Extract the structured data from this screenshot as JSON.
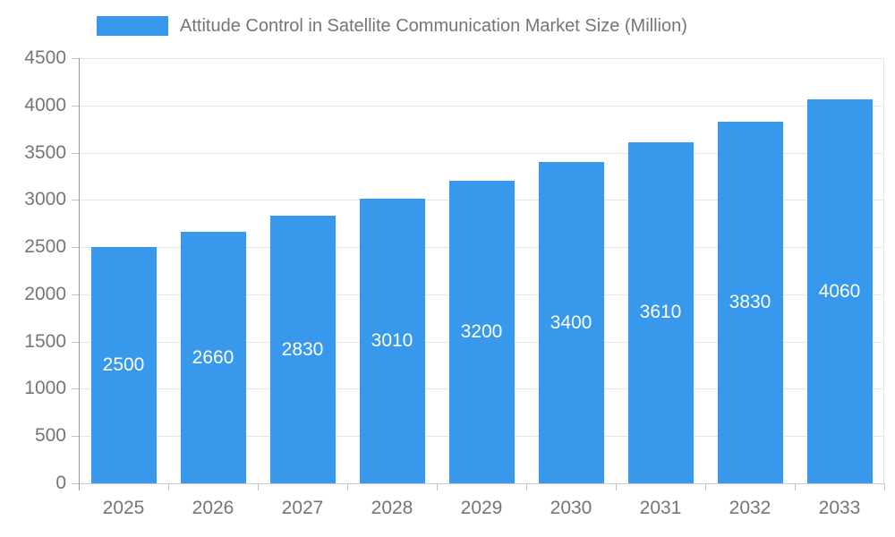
{
  "legend": {
    "label": "Attitude Control in Satellite Communication Market Size (Million)"
  },
  "chart_data": {
    "type": "bar",
    "title": "Attitude Control in Satellite Communication Market Size (Million)",
    "series_name": "Attitude Control in Satellite Communication Market Size (Million)",
    "categories": [
      "2025",
      "2026",
      "2027",
      "2028",
      "2029",
      "2030",
      "2031",
      "2032",
      "2033"
    ],
    "values": [
      2500,
      2660,
      2830,
      3010,
      3200,
      3400,
      3610,
      3830,
      4060
    ],
    "xlabel": "",
    "ylabel": "",
    "ylim": [
      0,
      4500
    ],
    "y_ticks": [
      0,
      500,
      1000,
      1500,
      2000,
      2500,
      3000,
      3500,
      4000,
      4500
    ],
    "grid": true,
    "legend_position": "top-left",
    "bar_value_labels": "inside-center"
  },
  "colors": {
    "bar": "#3899ec",
    "bar_label": "#ffffff",
    "legend_text": "#757575",
    "axis_label": "#757575",
    "gridline": "#e6e6e6",
    "tick": "#c4c4c4",
    "y_axis_line": "#999999",
    "x_axis_line": "#cccccc",
    "background": "#ffffff"
  }
}
